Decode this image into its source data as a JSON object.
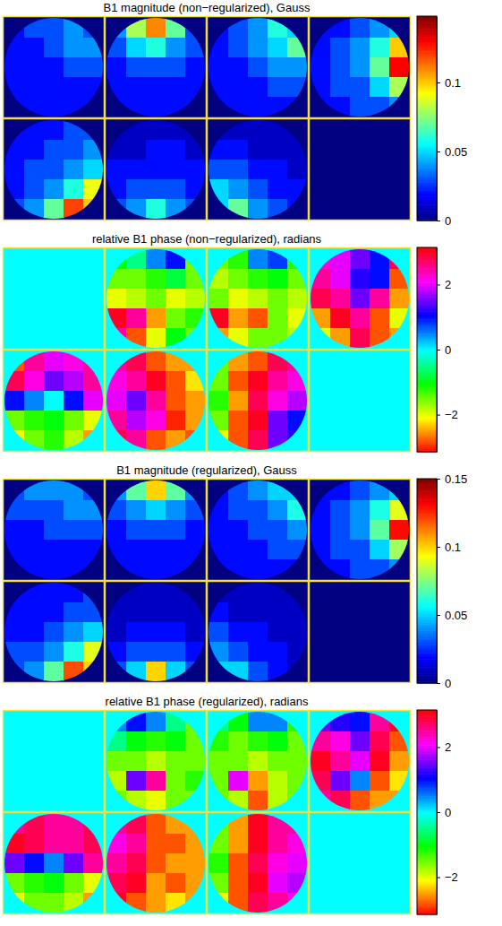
{
  "chart_data": [
    {
      "type": "heatmap",
      "title": "B1 magnitude (non−regularized), Gauss",
      "color": "jet",
      "tiles": [
        [
          [
            0.02,
            0.03,
            0.03,
            0.04,
            0.03
          ],
          [
            0.02,
            0.02,
            0.03,
            0.04,
            0.04
          ],
          [
            0.02,
            0.02,
            0.02,
            0.03,
            0.03
          ],
          [
            0.02,
            0.02,
            0.02,
            0.02,
            0.02
          ],
          [
            0.02,
            0.02,
            0.02,
            0.02,
            0.02
          ]
        ],
        [
          [
            0.04,
            0.08,
            0.11,
            0.07,
            0.03
          ],
          [
            0.03,
            0.05,
            0.06,
            0.04,
            0.03
          ],
          [
            0.02,
            0.03,
            0.03,
            0.03,
            0.02
          ],
          [
            0.02,
            0.02,
            0.02,
            0.02,
            0.02
          ],
          [
            0.02,
            0.02,
            0.02,
            0.02,
            0.02
          ]
        ],
        [
          [
            0.02,
            0.03,
            0.04,
            0.06,
            0.05
          ],
          [
            0.02,
            0.03,
            0.04,
            0.05,
            0.07
          ],
          [
            0.02,
            0.02,
            0.03,
            0.04,
            0.04
          ],
          [
            0.02,
            0.02,
            0.02,
            0.03,
            0.03
          ],
          [
            0.02,
            0.02,
            0.02,
            0.02,
            0.02
          ]
        ],
        [
          [
            0.02,
            0.02,
            0.03,
            0.04,
            0.05
          ],
          [
            0.02,
            0.03,
            0.04,
            0.06,
            0.1
          ],
          [
            0.02,
            0.03,
            0.04,
            0.07,
            0.13
          ],
          [
            0.02,
            0.03,
            0.03,
            0.05,
            0.08
          ],
          [
            0.02,
            0.02,
            0.03,
            0.03,
            0.04
          ]
        ],
        [
          [
            0.02,
            0.02,
            0.02,
            0.03,
            0.03
          ],
          [
            0.02,
            0.02,
            0.03,
            0.03,
            0.04
          ],
          [
            0.02,
            0.03,
            0.03,
            0.04,
            0.05
          ],
          [
            0.02,
            0.03,
            0.04,
            0.06,
            0.09
          ],
          [
            0.03,
            0.04,
            0.07,
            0.12,
            0.1
          ]
        ],
        [
          [
            0.01,
            0.01,
            0.01,
            0.01,
            0.01
          ],
          [
            0.01,
            0.01,
            0.02,
            0.02,
            0.01
          ],
          [
            0.02,
            0.02,
            0.02,
            0.02,
            0.02
          ],
          [
            0.02,
            0.03,
            0.03,
            0.03,
            0.02
          ],
          [
            0.03,
            0.04,
            0.06,
            0.04,
            0.03
          ]
        ],
        [
          [
            0.01,
            0.01,
            0.01,
            0.01,
            0.01
          ],
          [
            0.02,
            0.02,
            0.01,
            0.01,
            0.01
          ],
          [
            0.03,
            0.03,
            0.02,
            0.02,
            0.01
          ],
          [
            0.05,
            0.04,
            0.03,
            0.02,
            0.02
          ],
          [
            0.05,
            0.07,
            0.04,
            0.03,
            0.02
          ]
        ]
      ],
      "colorbar": {
        "range": [
          0,
          0.148
        ],
        "ticks": [
          0,
          0.05,
          0.1
        ]
      }
    },
    {
      "type": "heatmap",
      "title": "relative B1 phase (non−regularized), radians",
      "color": "hsv",
      "tiles": [
        [
          [
            0,
            0,
            0,
            0,
            0
          ],
          [
            0,
            0,
            0,
            0,
            0
          ],
          [
            0,
            0,
            0,
            0,
            0
          ],
          [
            0,
            0,
            0,
            0,
            0
          ],
          [
            0,
            0,
            0,
            0,
            0
          ]
        ],
        [
          [
            -1.0,
            -0.5,
            0.5,
            1.0,
            -1.5
          ],
          [
            -1.5,
            -1.5,
            -1.2,
            -0.8,
            -1.5
          ],
          [
            -2.0,
            -1.8,
            -1.5,
            -2.0,
            -1.8
          ],
          [
            3.0,
            2.5,
            -2.5,
            -1.5,
            -1.2
          ],
          [
            2.5,
            -2.8,
            -2.0,
            -1.0,
            -1.5
          ]
        ],
        [
          [
            -1.5,
            -1.2,
            0.5,
            0.8,
            -1.2
          ],
          [
            -1.8,
            -1.5,
            -1.2,
            -1.0,
            -1.5
          ],
          [
            -1.5,
            -2.0,
            -1.8,
            -1.5,
            -1.8
          ],
          [
            3.0,
            -2.5,
            -2.8,
            -1.5,
            -2.0
          ],
          [
            -2.5,
            -2.0,
            -1.5,
            -1.5,
            -1.8
          ]
        ],
        [
          [
            2.2,
            2.0,
            1.5,
            1.0,
            2.8
          ],
          [
            2.5,
            2.0,
            1.2,
            1.0,
            -2.8
          ],
          [
            2.8,
            2.5,
            1.5,
            2.5,
            -2.5
          ],
          [
            -2.5,
            3.0,
            2.5,
            -2.8,
            -2.0
          ],
          [
            -2.0,
            -2.5,
            2.8,
            -2.8,
            -2.5
          ]
        ],
        [
          [
            -2.8,
            2.5,
            2.0,
            2.2,
            2.5
          ],
          [
            2.8,
            2.2,
            1.5,
            1.8,
            2.5
          ],
          [
            1.0,
            0.5,
            0.0,
            1.0,
            2.0
          ],
          [
            -1.5,
            -1.2,
            -1.0,
            -1.5,
            -2.0
          ],
          [
            -2.0,
            -1.5,
            -1.2,
            -1.8,
            -2.5
          ]
        ],
        [
          [
            2.5,
            2.8,
            -2.8,
            -2.5,
            -2.5
          ],
          [
            2.2,
            2.5,
            3.0,
            -2.8,
            -2.2
          ],
          [
            2.0,
            1.5,
            2.5,
            -2.8,
            -2.5
          ],
          [
            2.5,
            1.8,
            2.2,
            -3.0,
            -2.5
          ],
          [
            2.8,
            2.5,
            -2.8,
            -2.5,
            -2.8
          ]
        ],
        [
          [
            -1.5,
            -2.5,
            -2.8,
            2.8,
            2.5
          ],
          [
            -1.5,
            -2.8,
            3.0,
            2.5,
            2.2
          ],
          [
            -1.2,
            -2.5,
            2.8,
            2.2,
            1.8
          ],
          [
            -1.5,
            -2.8,
            3.0,
            1.5,
            1.0
          ],
          [
            -2.0,
            -2.8,
            2.8,
            1.5,
            1.2
          ]
        ]
      ],
      "colorbar": {
        "range": [
          -3.1416,
          3.1416
        ],
        "ticks": [
          {
            "value": -2,
            "label": "−2"
          },
          0,
          2
        ]
      }
    },
    {
      "type": "heatmap",
      "title": "B1 magnitude (regularized), Gauss",
      "color": "jet",
      "tiles": [
        [
          [
            0.03,
            0.04,
            0.04,
            0.04,
            0.03
          ],
          [
            0.03,
            0.03,
            0.03,
            0.04,
            0.04
          ],
          [
            0.02,
            0.02,
            0.03,
            0.03,
            0.03
          ],
          [
            0.02,
            0.02,
            0.02,
            0.02,
            0.02
          ],
          [
            0.02,
            0.02,
            0.02,
            0.02,
            0.02
          ]
        ],
        [
          [
            0.04,
            0.07,
            0.1,
            0.07,
            0.04
          ],
          [
            0.03,
            0.04,
            0.05,
            0.04,
            0.03
          ],
          [
            0.02,
            0.03,
            0.03,
            0.03,
            0.02
          ],
          [
            0.02,
            0.02,
            0.02,
            0.02,
            0.02
          ],
          [
            0.02,
            0.02,
            0.02,
            0.02,
            0.02
          ]
        ],
        [
          [
            0.02,
            0.03,
            0.04,
            0.05,
            0.05
          ],
          [
            0.02,
            0.03,
            0.03,
            0.04,
            0.06
          ],
          [
            0.02,
            0.02,
            0.03,
            0.03,
            0.04
          ],
          [
            0.02,
            0.02,
            0.02,
            0.03,
            0.03
          ],
          [
            0.02,
            0.02,
            0.02,
            0.02,
            0.02
          ]
        ],
        [
          [
            0.02,
            0.02,
            0.03,
            0.04,
            0.05
          ],
          [
            0.02,
            0.03,
            0.04,
            0.06,
            0.09
          ],
          [
            0.02,
            0.03,
            0.04,
            0.07,
            0.13
          ],
          [
            0.02,
            0.03,
            0.03,
            0.05,
            0.08
          ],
          [
            0.02,
            0.02,
            0.03,
            0.03,
            0.04
          ]
        ],
        [
          [
            0.02,
            0.02,
            0.02,
            0.02,
            0.03
          ],
          [
            0.02,
            0.02,
            0.02,
            0.03,
            0.03
          ],
          [
            0.02,
            0.02,
            0.03,
            0.04,
            0.05
          ],
          [
            0.03,
            0.03,
            0.04,
            0.06,
            0.09
          ],
          [
            0.03,
            0.04,
            0.07,
            0.12,
            0.1
          ]
        ],
        [
          [
            0.01,
            0.01,
            0.01,
            0.01,
            0.01
          ],
          [
            0.01,
            0.01,
            0.01,
            0.01,
            0.01
          ],
          [
            0.01,
            0.02,
            0.02,
            0.02,
            0.01
          ],
          [
            0.02,
            0.03,
            0.03,
            0.03,
            0.02
          ],
          [
            0.03,
            0.05,
            0.1,
            0.05,
            0.03
          ]
        ],
        [
          [
            0.01,
            0.01,
            0.01,
            0.01,
            0.01
          ],
          [
            0.02,
            0.01,
            0.01,
            0.01,
            0.01
          ],
          [
            0.03,
            0.02,
            0.02,
            0.01,
            0.01
          ],
          [
            0.04,
            0.03,
            0.02,
            0.02,
            0.01
          ],
          [
            0.05,
            0.05,
            0.03,
            0.02,
            0.01
          ]
        ]
      ],
      "colorbar": {
        "range": [
          0,
          0.15
        ],
        "ticks": [
          0,
          0.05,
          0.1,
          0.15
        ]
      }
    },
    {
      "type": "heatmap",
      "title": "relative B1 phase (regularized), radians",
      "color": "hsv",
      "tiles": [
        [
          [
            0,
            0,
            0,
            0,
            0
          ],
          [
            0,
            0,
            0,
            0,
            0
          ],
          [
            0,
            0,
            0,
            0,
            0
          ],
          [
            0,
            0,
            0,
            0,
            0
          ],
          [
            0,
            0,
            0,
            0,
            0
          ]
        ],
        [
          [
            0.5,
            1.0,
            0.5,
            -0.5,
            -1.5
          ],
          [
            -0.5,
            -1.0,
            -1.2,
            -1.0,
            -1.5
          ],
          [
            -1.5,
            -1.5,
            -1.8,
            -1.5,
            -1.5
          ],
          [
            -1.8,
            1.5,
            2.5,
            -1.5,
            -1.2
          ],
          [
            -1.5,
            -1.8,
            -2.0,
            -1.5,
            -1.5
          ]
        ],
        [
          [
            -0.5,
            -1.0,
            0.5,
            0.5,
            -1.2
          ],
          [
            -1.2,
            -1.5,
            -1.2,
            -1.0,
            -1.5
          ],
          [
            -1.5,
            -1.5,
            -1.8,
            -1.5,
            -1.5
          ],
          [
            -1.5,
            2.0,
            -2.5,
            -1.8,
            -1.5
          ],
          [
            -1.5,
            -1.8,
            -2.8,
            -1.8,
            -1.5
          ]
        ],
        [
          [
            1.5,
            1.2,
            1.0,
            2.5,
            3.0
          ],
          [
            2.5,
            2.2,
            1.5,
            2.8,
            -2.8
          ],
          [
            3.0,
            2.5,
            2.0,
            3.0,
            -2.5
          ],
          [
            2.8,
            1.5,
            0.5,
            -2.8,
            -2.2
          ],
          [
            2.5,
            2.8,
            -2.8,
            -2.5,
            -2.5
          ]
        ],
        [
          [
            2.5,
            2.8,
            2.5,
            2.5,
            2.8
          ],
          [
            3.0,
            2.8,
            2.5,
            2.5,
            2.8
          ],
          [
            1.5,
            1.0,
            0.5,
            1.5,
            2.5
          ],
          [
            -1.5,
            -1.2,
            -1.0,
            -1.5,
            -2.0
          ],
          [
            -2.0,
            -1.5,
            -1.5,
            -1.8,
            -2.5
          ]
        ],
        [
          [
            2.5,
            2.8,
            -2.8,
            -2.5,
            -2.5
          ],
          [
            2.2,
            2.5,
            -2.8,
            -2.8,
            -2.5
          ],
          [
            2.5,
            2.8,
            -2.8,
            -2.5,
            -2.5
          ],
          [
            2.8,
            3.0,
            -2.5,
            -2.8,
            -2.5
          ],
          [
            3.0,
            -2.8,
            -2.5,
            -2.2,
            -2.5
          ]
        ],
        [
          [
            -1.5,
            -2.5,
            3.0,
            2.5,
            2.5
          ],
          [
            -1.5,
            -2.5,
            3.0,
            2.5,
            2.2
          ],
          [
            -1.2,
            -2.8,
            2.8,
            2.2,
            2.0
          ],
          [
            -1.5,
            -2.8,
            3.0,
            2.0,
            1.8
          ],
          [
            -2.0,
            -2.8,
            2.8,
            2.5,
            2.2
          ]
        ]
      ],
      "colorbar": {
        "range": [
          -3.1416,
          3.1416
        ],
        "ticks": [
          {
            "value": -2,
            "label": "−2"
          },
          0,
          2
        ]
      }
    }
  ]
}
